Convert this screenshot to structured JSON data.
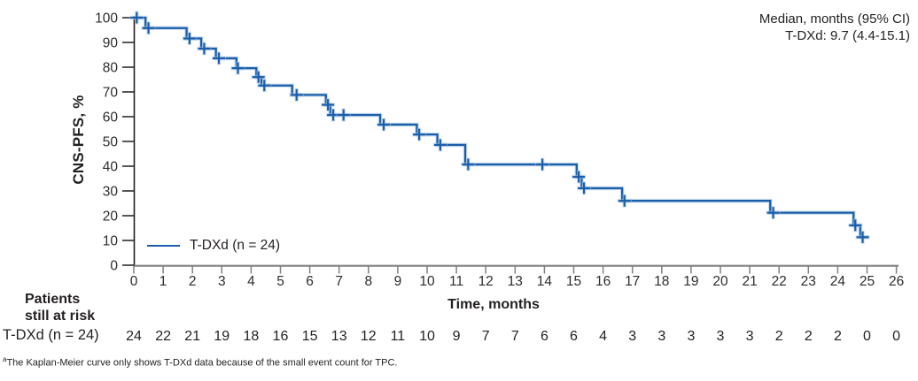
{
  "chart_data": {
    "type": "line",
    "subtype": "kaplan_meier_step",
    "title": "",
    "xlabel": "Time, months",
    "ylabel": "CNS-PFS, %",
    "xlim": [
      0,
      26
    ],
    "ylim": [
      0,
      100
    ],
    "xticks": [
      0,
      1,
      2,
      3,
      4,
      5,
      6,
      7,
      8,
      9,
      10,
      11,
      12,
      13,
      14,
      15,
      16,
      17,
      18,
      19,
      20,
      21,
      22,
      23,
      24,
      25,
      26
    ],
    "yticks": [
      0,
      10,
      20,
      30,
      40,
      50,
      60,
      70,
      80,
      90,
      100
    ],
    "grid": false,
    "legend_position": "inside-bottom-left",
    "annotation_lines": [
      "Median, months (95% CI)",
      "T-DXd: 9.7 (4.4-15.1)"
    ],
    "series": [
      {
        "name": "T-DXd (n = 24)",
        "color": "#1b5ea9",
        "step_points": [
          [
            0,
            100
          ],
          [
            0.4,
            95.8
          ],
          [
            1.8,
            91.6
          ],
          [
            2.3,
            87.5
          ],
          [
            2.8,
            83.6
          ],
          [
            3.5,
            79.6
          ],
          [
            4.18,
            76.0
          ],
          [
            4.35,
            72.6
          ],
          [
            5.4,
            68.8
          ],
          [
            6.55,
            64.8
          ],
          [
            6.7,
            60.7
          ],
          [
            8.4,
            56.8
          ],
          [
            9.65,
            52.8
          ],
          [
            10.35,
            48.6
          ],
          [
            11.3,
            40.7
          ],
          [
            15.1,
            35.7
          ],
          [
            15.27,
            31.1
          ],
          [
            16.65,
            26.0
          ],
          [
            21.7,
            21.2
          ],
          [
            24.54,
            16.1
          ],
          [
            24.77,
            11.3
          ],
          [
            25.05,
            11.3
          ]
        ],
        "censor_marks": [
          [
            0.1,
            100
          ],
          [
            0.5,
            95.8
          ],
          [
            1.9,
            91.6
          ],
          [
            2.4,
            87.5
          ],
          [
            2.9,
            83.6
          ],
          [
            3.55,
            79.6
          ],
          [
            4.25,
            76.0
          ],
          [
            4.45,
            72.6
          ],
          [
            5.55,
            68.8
          ],
          [
            6.62,
            64.8
          ],
          [
            6.8,
            60.7
          ],
          [
            7.15,
            60.7
          ],
          [
            8.52,
            56.8
          ],
          [
            9.73,
            52.8
          ],
          [
            10.45,
            48.6
          ],
          [
            11.4,
            40.7
          ],
          [
            13.93,
            40.7
          ],
          [
            15.17,
            35.7
          ],
          [
            15.35,
            31.1
          ],
          [
            16.73,
            26.0
          ],
          [
            21.8,
            21.2
          ],
          [
            24.6,
            16.1
          ],
          [
            24.85,
            11.3
          ]
        ]
      }
    ],
    "at_risk_table": {
      "header": [
        "Patients",
        "still at risk"
      ],
      "row_label": "T-DXd (n = 24)",
      "times": [
        0,
        1,
        2,
        3,
        4,
        5,
        6,
        7,
        8,
        9,
        10,
        11,
        12,
        13,
        14,
        15,
        16,
        17,
        18,
        19,
        20,
        21,
        22,
        23,
        24,
        25,
        26
      ],
      "values": [
        24,
        22,
        21,
        19,
        18,
        16,
        15,
        13,
        12,
        11,
        10,
        9,
        7,
        7,
        6,
        6,
        4,
        3,
        3,
        3,
        3,
        3,
        2,
        2,
        2,
        0,
        0
      ]
    },
    "footnote": {
      "sup": "a",
      "text": "The Kaplan-Meier curve only shows T-DXd data because of the small event count for TPC."
    }
  },
  "colors": {
    "curve": "#1b5ea9",
    "curve_halo": "#a9c7e6",
    "axis_y": "#231f20",
    "axis_x": "#808184",
    "tick_text": "#2d2d2d",
    "text": "#231f20"
  }
}
